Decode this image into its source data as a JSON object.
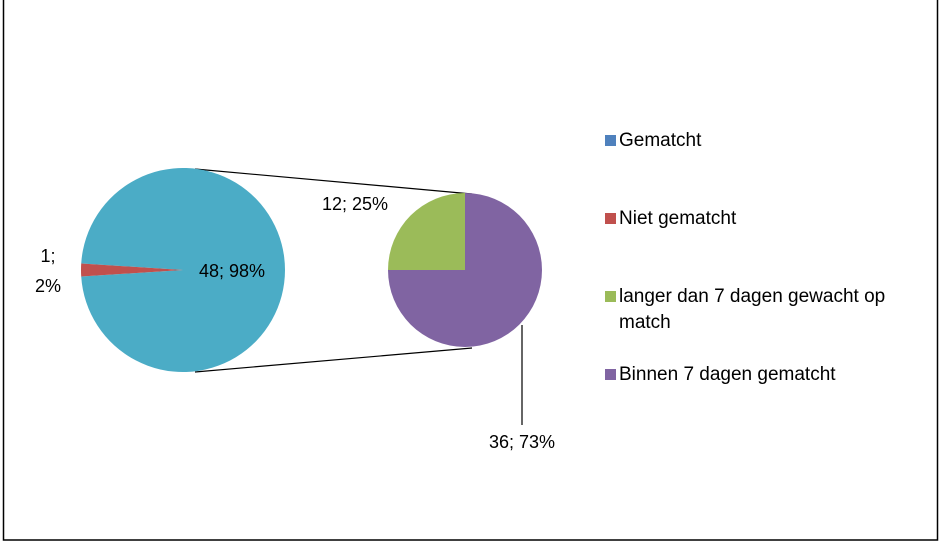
{
  "chart_data": {
    "type": "pie-of-pie",
    "legend": [
      {
        "name": "Gematcht",
        "color": "#4f81bd"
      },
      {
        "name": "Niet gematcht",
        "color": "#c0504d"
      },
      {
        "name": "langer dan 7 dagen gewacht op match",
        "color": "#9bbb59"
      },
      {
        "name": "Binnen 7 dagen gematcht",
        "color": "#8064a2"
      }
    ],
    "pies": [
      {
        "values": [
          48,
          1
        ],
        "value_labels": [
          "48; 98%",
          "1; 2%"
        ],
        "colors": [
          "#4bacc6",
          "#c0504d"
        ]
      },
      {
        "values": [
          12,
          36
        ],
        "value_labels": [
          "12; 25%",
          "36; 73%"
        ],
        "colors": [
          "#9bbb59",
          "#8064a2"
        ]
      }
    ]
  }
}
